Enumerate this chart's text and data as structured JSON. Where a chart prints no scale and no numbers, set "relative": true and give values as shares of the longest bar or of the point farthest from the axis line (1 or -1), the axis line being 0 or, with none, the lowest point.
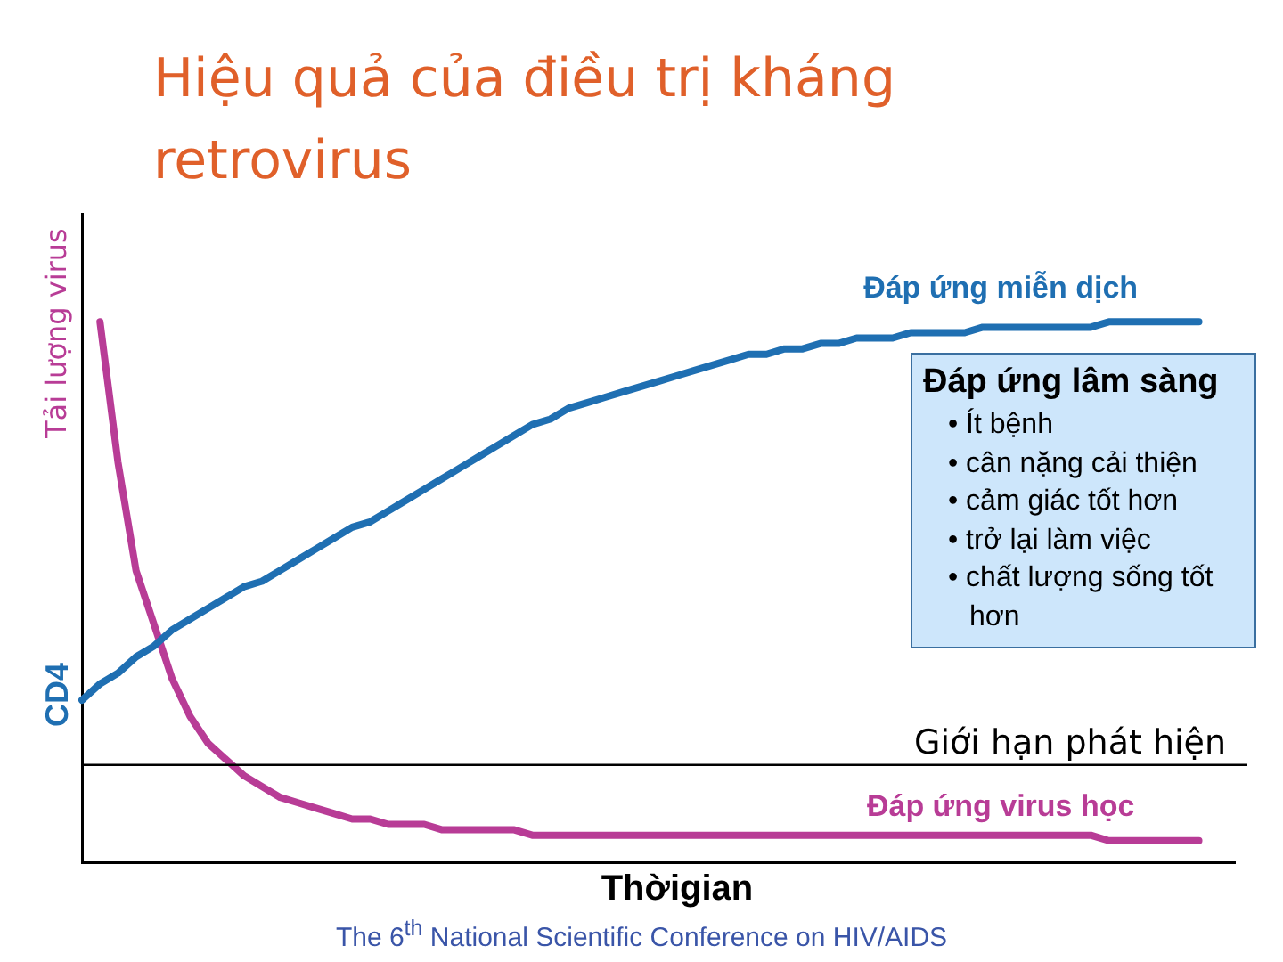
{
  "chart_data": {
    "type": "line",
    "title": "Hiệu quả của điều trị kháng retrovirus",
    "xlabel": "Thờigian",
    "ylabel": "CD4",
    "y2label": "Tải lượng virus",
    "relative": true,
    "legend": false,
    "grid": false,
    "marker": "none",
    "line_style": "solid",
    "categories": [
      null,
      null,
      null,
      null,
      null,
      null,
      null,
      null,
      null,
      null,
      null,
      null,
      null,
      null,
      null,
      null,
      null,
      null,
      null,
      null,
      null,
      null,
      null,
      null,
      null,
      null,
      null,
      null,
      null,
      null,
      null,
      null,
      null,
      null,
      null,
      null,
      null,
      null,
      null,
      null,
      null,
      null,
      null,
      null,
      null,
      null,
      null,
      null,
      null,
      null,
      null,
      null,
      null,
      null,
      null,
      null,
      null,
      null,
      null,
      null,
      null,
      null,
      null,
      null,
      null
    ],
    "series": [
      {
        "name": "Đáp ứng miễn dịch",
        "color": "#1f6fb2",
        "values": [
          0.3,
          0.33,
          0.35,
          0.38,
          0.4,
          0.43,
          0.45,
          0.47,
          0.49,
          0.51,
          0.52,
          0.54,
          0.56,
          0.58,
          0.6,
          0.62,
          0.63,
          0.65,
          0.67,
          0.69,
          0.71,
          0.73,
          0.75,
          0.77,
          0.79,
          0.81,
          0.82,
          0.84,
          0.85,
          0.86,
          0.87,
          0.88,
          0.89,
          0.9,
          0.91,
          0.92,
          0.93,
          0.94,
          0.94,
          0.95,
          0.95,
          0.96,
          0.96,
          0.97,
          0.97,
          0.97,
          0.98,
          0.98,
          0.98,
          0.98,
          0.99,
          0.99,
          0.99,
          0.99,
          0.99,
          0.99,
          0.99,
          1,
          1,
          1,
          1,
          1,
          1,
          null,
          null
        ]
      },
      {
        "name": "Đáp ứng virus học",
        "color": "#b83c96",
        "values": [
          null,
          1,
          0.74,
          0.54,
          0.44,
          0.34,
          0.27,
          0.22,
          0.19,
          0.16,
          0.14,
          0.12,
          0.11,
          0.1,
          0.09,
          0.08,
          0.08,
          0.07,
          0.07,
          0.07,
          0.06,
          0.06,
          0.06,
          0.06,
          0.06,
          0.05,
          0.05,
          0.05,
          0.05,
          0.05,
          0.05,
          0.05,
          0.05,
          0.05,
          0.05,
          0.05,
          0.05,
          0.05,
          0.05,
          0.05,
          0.05,
          0.05,
          0.05,
          0.05,
          0.05,
          0.05,
          0.05,
          0.05,
          0.05,
          0.05,
          0.05,
          0.05,
          0.05,
          0.05,
          0.05,
          0.05,
          0.05,
          0.04,
          0.04,
          0.04,
          0.04,
          0.04,
          0.04,
          null,
          null
        ]
      }
    ],
    "ref_lines": [
      {
        "axis": "y",
        "value": 0.18,
        "label": "Giới hạn phát hiện",
        "color": "#000000"
      }
    ],
    "annotations": [
      "Đáp ứng lâm sàng\n• Ít bệnh\n• cân nặng cải thiện\n• cảm giác tốt hơn\n• trở lại làm việc\n• chất lượng sống tốt hơn",
      "The 6$^{th}$ National Scientific Conference on HIV/AIDS"
    ]
  }
}
